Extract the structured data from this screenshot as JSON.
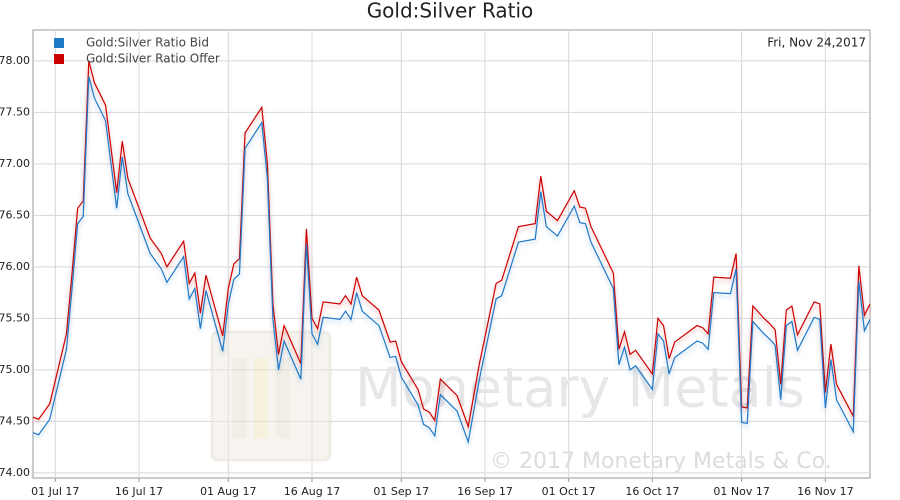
{
  "chart_data": {
    "type": "line",
    "title": "Gold:Silver Ratio",
    "date_label": "Fri, Nov 24,2017",
    "watermark": "Monetary Metals",
    "copyright": "© 2017 Monetary Metals & Co.",
    "grid": true,
    "legend": "top-left",
    "x": [
      "2017-06-27",
      "2017-06-28",
      "2017-06-30",
      "2017-07-03",
      "2017-07-04",
      "2017-07-05",
      "2017-07-06",
      "2017-07-07",
      "2017-07-08",
      "2017-07-10",
      "2017-07-12",
      "2017-07-13",
      "2017-07-14",
      "2017-07-16",
      "2017-07-18",
      "2017-07-20",
      "2017-07-21",
      "2017-07-24",
      "2017-07-25",
      "2017-07-26",
      "2017-07-27",
      "2017-07-28",
      "2017-07-31",
      "2017-08-01",
      "2017-08-02",
      "2017-08-03",
      "2017-08-04",
      "2017-08-07",
      "2017-08-08",
      "2017-08-09",
      "2017-08-10",
      "2017-08-11",
      "2017-08-14",
      "2017-08-15",
      "2017-08-16",
      "2017-08-17",
      "2017-08-18",
      "2017-08-21",
      "2017-08-22",
      "2017-08-23",
      "2017-08-24",
      "2017-08-25",
      "2017-08-28",
      "2017-08-30",
      "2017-08-31",
      "2017-09-01",
      "2017-09-04",
      "2017-09-05",
      "2017-09-06",
      "2017-09-07",
      "2017-09-08",
      "2017-09-11",
      "2017-09-13",
      "2017-09-15",
      "2017-09-18",
      "2017-09-19",
      "2017-09-22",
      "2017-09-25",
      "2017-09-26",
      "2017-09-27",
      "2017-09-29",
      "2017-10-02",
      "2017-10-03",
      "2017-10-04",
      "2017-10-05",
      "2017-10-09",
      "2017-10-10",
      "2017-10-11",
      "2017-10-12",
      "2017-10-13",
      "2017-10-16",
      "2017-10-17",
      "2017-10-18",
      "2017-10-19",
      "2017-10-20",
      "2017-10-24",
      "2017-10-25",
      "2017-10-26",
      "2017-10-27",
      "2017-10-30",
      "2017-10-31",
      "2017-11-01",
      "2017-11-02",
      "2017-11-03",
      "2017-11-05",
      "2017-11-06",
      "2017-11-07",
      "2017-11-08",
      "2017-11-09",
      "2017-11-10",
      "2017-11-11",
      "2017-11-14",
      "2017-11-15",
      "2017-11-16",
      "2017-11-17",
      "2017-11-18",
      "2017-11-21",
      "2017-11-22",
      "2017-11-23",
      "2017-11-24"
    ],
    "series": [
      {
        "name": "Gold:Silver Ratio Bid",
        "color": "#1f78c8",
        "values": [
          74.39,
          74.37,
          74.52,
          75.2,
          75.79,
          76.42,
          76.49,
          77.85,
          77.64,
          77.42,
          76.57,
          77.07,
          76.71,
          76.42,
          76.13,
          75.98,
          75.85,
          76.1,
          75.69,
          75.79,
          75.4,
          75.77,
          75.18,
          75.64,
          75.88,
          75.93,
          77.15,
          77.4,
          76.86,
          75.49,
          75.0,
          75.28,
          74.91,
          76.22,
          75.35,
          75.25,
          75.51,
          75.49,
          75.57,
          75.49,
          75.75,
          75.57,
          75.43,
          75.12,
          75.13,
          74.93,
          74.66,
          74.47,
          74.44,
          74.36,
          74.76,
          74.6,
          74.3,
          74.91,
          75.69,
          75.72,
          76.24,
          76.27,
          76.73,
          76.39,
          76.3,
          76.59,
          76.43,
          76.42,
          76.24,
          75.79,
          75.05,
          75.22,
          75.0,
          75.04,
          74.81,
          75.35,
          75.28,
          74.96,
          75.12,
          75.28,
          75.26,
          75.2,
          75.75,
          75.74,
          75.98,
          74.49,
          74.48,
          75.47,
          75.35,
          75.3,
          75.24,
          74.71,
          75.43,
          75.47,
          75.19,
          75.51,
          75.49,
          74.63,
          75.1,
          74.71,
          74.4,
          75.86,
          75.38,
          75.49
        ]
      },
      {
        "name": "Gold:Silver Ratio Offer",
        "color": "#cc0000",
        "values": [
          74.54,
          74.52,
          74.67,
          75.35,
          75.94,
          76.57,
          76.64,
          78.0,
          77.79,
          77.57,
          76.72,
          77.22,
          76.86,
          76.57,
          76.28,
          76.13,
          76.0,
          76.25,
          75.84,
          75.94,
          75.55,
          75.92,
          75.33,
          75.79,
          76.03,
          76.08,
          77.3,
          77.55,
          77.01,
          75.64,
          75.15,
          75.43,
          75.06,
          76.37,
          75.5,
          75.4,
          75.66,
          75.64,
          75.72,
          75.64,
          75.9,
          75.72,
          75.58,
          75.27,
          75.28,
          75.08,
          74.81,
          74.62,
          74.59,
          74.51,
          74.91,
          74.75,
          74.45,
          75.06,
          75.84,
          75.87,
          76.39,
          76.42,
          76.88,
          76.54,
          76.45,
          76.74,
          76.58,
          76.57,
          76.39,
          75.94,
          75.2,
          75.37,
          75.15,
          75.19,
          74.96,
          75.5,
          75.43,
          75.11,
          75.27,
          75.43,
          75.41,
          75.35,
          75.9,
          75.89,
          76.13,
          74.64,
          74.63,
          75.62,
          75.5,
          75.45,
          75.39,
          74.86,
          75.58,
          75.62,
          75.34,
          75.66,
          75.64,
          74.78,
          75.25,
          74.86,
          74.55,
          76.01,
          75.53,
          75.64
        ]
      }
    ],
    "xlim": [
      "2017-06-27",
      "2017-11-24"
    ],
    "xticks": [
      {
        "value": "2017-07-01",
        "label": "01 Jul 17"
      },
      {
        "value": "2017-07-16",
        "label": "16 Jul 17"
      },
      {
        "value": "2017-08-01",
        "label": "01 Aug 17"
      },
      {
        "value": "2017-08-16",
        "label": "16 Aug 17"
      },
      {
        "value": "2017-09-01",
        "label": "01 Sep 17"
      },
      {
        "value": "2017-09-16",
        "label": "16 Sep 17"
      },
      {
        "value": "2017-10-01",
        "label": "01 Oct 17"
      },
      {
        "value": "2017-10-16",
        "label": "16 Oct 17"
      },
      {
        "value": "2017-11-01",
        "label": "01 Nov 17"
      },
      {
        "value": "2017-11-16",
        "label": "16 Nov 17"
      }
    ],
    "ylim": [
      73.95,
      78.3
    ],
    "yticks": [
      {
        "value": 74,
        "label": "74.00"
      },
      {
        "value": 74.5,
        "label": "74.50"
      },
      {
        "value": 75,
        "label": "75.00"
      },
      {
        "value": 75.5,
        "label": "75.50"
      },
      {
        "value": 76,
        "label": "76.00"
      },
      {
        "value": 76.5,
        "label": "76.50"
      },
      {
        "value": 77,
        "label": "77.00"
      },
      {
        "value": 77.5,
        "label": "77.50"
      },
      {
        "value": 78,
        "label": "78.00"
      }
    ]
  }
}
